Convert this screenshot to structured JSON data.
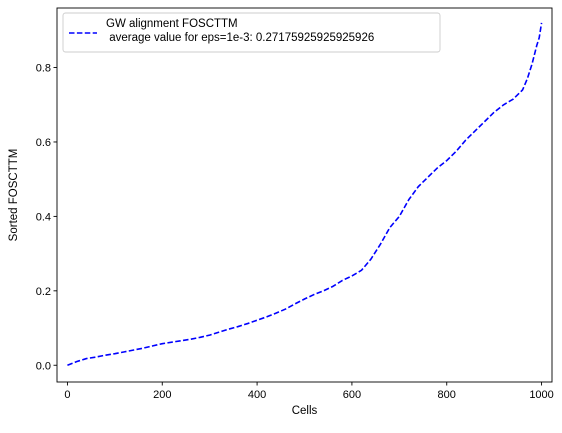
{
  "chart_data": {
    "type": "line",
    "title": "",
    "xlabel": "Cells",
    "ylabel": "Sorted FOSCTTM",
    "xlim": [
      -22,
      1022
    ],
    "ylim": [
      -0.045,
      0.96
    ],
    "xticks": [
      0,
      200,
      400,
      600,
      800,
      1000
    ],
    "xtick_labels": [
      "0",
      "200",
      "400",
      "600",
      "800",
      "1000"
    ],
    "yticks": [
      0.0,
      0.2,
      0.4,
      0.6,
      0.8
    ],
    "ytick_labels": [
      "0.0",
      "0.2",
      "0.4",
      "0.6",
      "0.8"
    ],
    "grid": false,
    "legend_position": "top-left",
    "series": [
      {
        "name": "GW alignment FOSCTTM\n average value for eps=1e-3: 0.27175925925925926",
        "legend_lines": [
          "GW alignment FOSCTTM",
          " average value for eps=1e-3: 0.27175925925925926"
        ],
        "color": "#0000ff",
        "line_style": "dashed",
        "x": [
          0,
          20,
          40,
          60,
          80,
          100,
          120,
          140,
          160,
          180,
          200,
          220,
          240,
          260,
          280,
          300,
          320,
          340,
          360,
          380,
          400,
          420,
          440,
          460,
          480,
          500,
          520,
          540,
          560,
          580,
          600,
          620,
          640,
          660,
          680,
          700,
          720,
          740,
          760,
          780,
          800,
          820,
          840,
          860,
          880,
          900,
          920,
          940,
          960,
          970,
          980,
          990,
          995,
          1000
        ],
        "y": [
          0.0,
          0.01,
          0.018,
          0.022,
          0.027,
          0.031,
          0.036,
          0.041,
          0.046,
          0.052,
          0.058,
          0.062,
          0.066,
          0.07,
          0.075,
          0.081,
          0.089,
          0.097,
          0.104,
          0.112,
          0.121,
          0.13,
          0.14,
          0.151,
          0.165,
          0.178,
          0.19,
          0.2,
          0.212,
          0.228,
          0.24,
          0.255,
          0.285,
          0.325,
          0.37,
          0.4,
          0.445,
          0.48,
          0.505,
          0.53,
          0.55,
          0.575,
          0.605,
          0.63,
          0.655,
          0.68,
          0.7,
          0.715,
          0.74,
          0.77,
          0.81,
          0.86,
          0.88,
          0.92
        ]
      }
    ]
  }
}
